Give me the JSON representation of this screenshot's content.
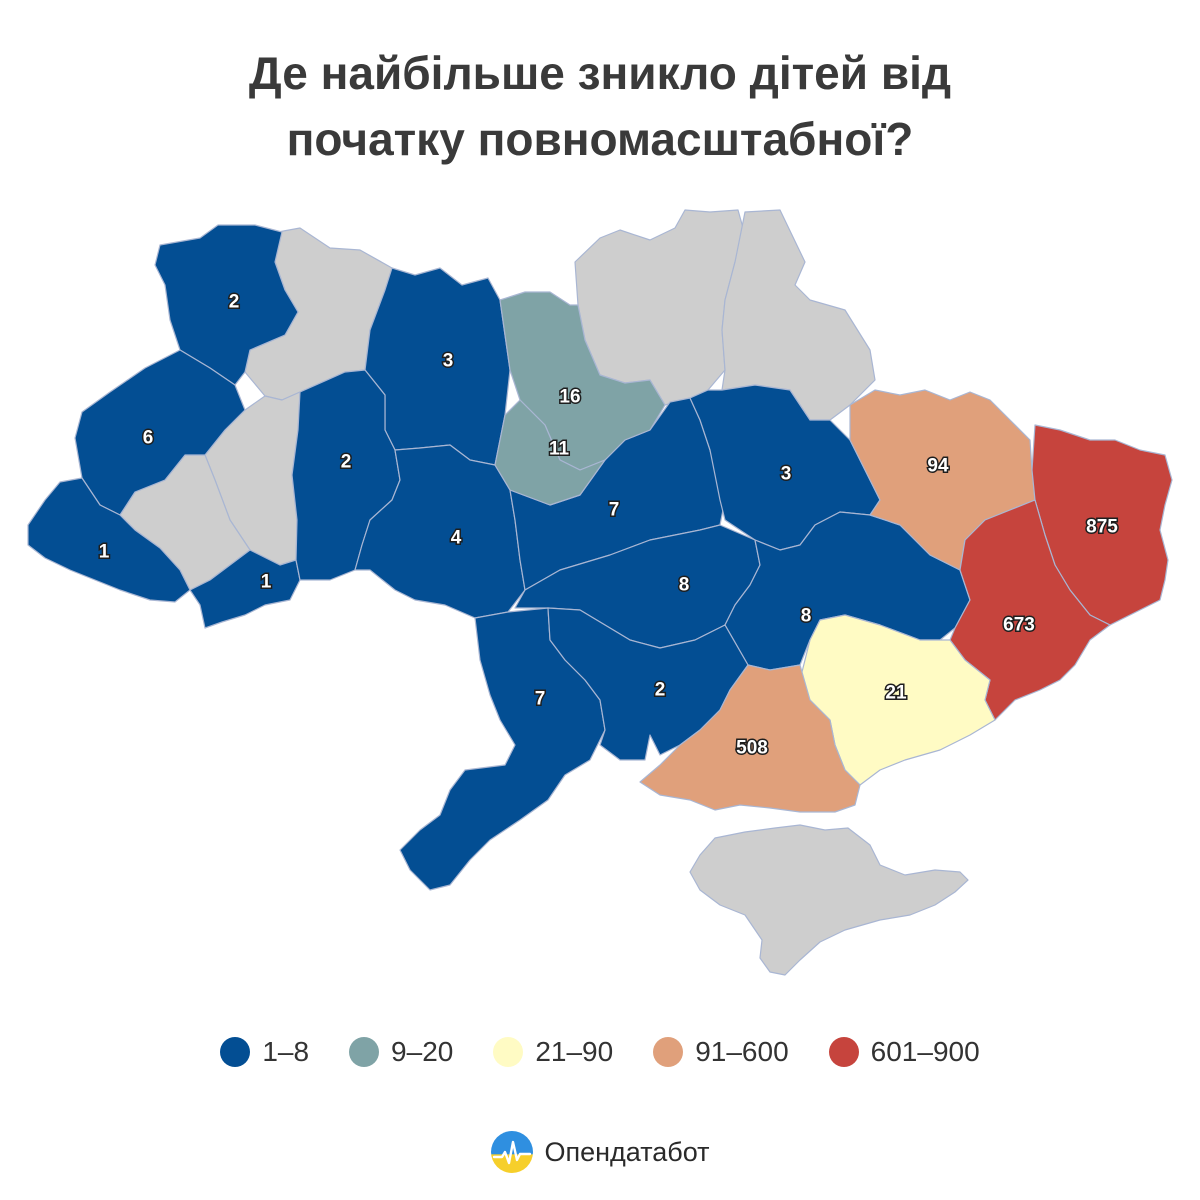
{
  "title": {
    "line1": "Де найбільше зникло дітей від",
    "line2": "початку повномасштабної?"
  },
  "colors": {
    "range_1_8": "#034e93",
    "range_9_20": "#7fa3a6",
    "range_21_90": "#fffbc4",
    "range_91_600": "#e0a07b",
    "range_601_900": "#c6443d",
    "no_data": "#cecece",
    "border": "#a9b6d3"
  },
  "map": {
    "regions": [
      {
        "value": "2",
        "range": "range_1_8"
      },
      {
        "value": "6",
        "range": "range_1_8"
      },
      {
        "value": "1",
        "range": "range_1_8"
      },
      {
        "value": "1",
        "range": "range_1_8"
      },
      {
        "value": "3",
        "range": "range_1_8"
      },
      {
        "value": "2",
        "range": "range_1_8"
      },
      {
        "value": "4",
        "range": "range_1_8"
      },
      {
        "value": "16",
        "range": "range_9_20"
      },
      {
        "value": "11",
        "range": "range_9_20"
      },
      {
        "value": "7",
        "range": "range_1_8"
      },
      {
        "value": "3",
        "range": "range_1_8"
      },
      {
        "value": "8",
        "range": "range_1_8"
      },
      {
        "value": "8",
        "range": "range_1_8"
      },
      {
        "value": "7",
        "range": "range_1_8"
      },
      {
        "value": "2",
        "range": "range_1_8"
      },
      {
        "value": "94",
        "range": "range_91_600"
      },
      {
        "value": "875",
        "range": "range_601_900"
      },
      {
        "value": "673",
        "range": "range_601_900"
      },
      {
        "value": "21",
        "range": "range_21_90"
      },
      {
        "value": "508",
        "range": "range_91_600"
      }
    ]
  },
  "legend": [
    {
      "label": "1–8",
      "color": "#034e93"
    },
    {
      "label": "9–20",
      "color": "#7fa3a6"
    },
    {
      "label": "21–90",
      "color": "#fffbc4"
    },
    {
      "label": "91–600",
      "color": "#e0a07b"
    },
    {
      "label": "601–900",
      "color": "#c6443d"
    }
  ],
  "brand": {
    "name": "Опендатабот",
    "logo_icon": "opendatabot-logo-icon"
  }
}
